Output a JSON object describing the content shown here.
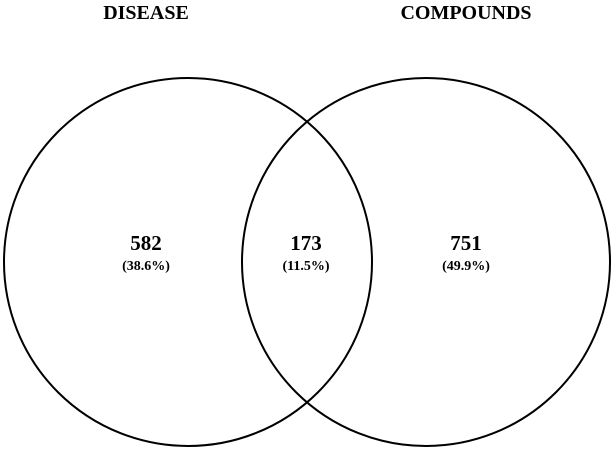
{
  "sets": [
    {
      "label": "DISEASE",
      "count": "582",
      "percent": "(38.6%)"
    },
    {
      "label": "COMPOUNDS",
      "count": "751",
      "percent": "(49.9%)"
    }
  ],
  "intersection": {
    "count": "173",
    "percent": "(11.5%)"
  },
  "colors": {
    "stroke": "#000000",
    "text": "#000000",
    "background": "#ffffff"
  }
}
